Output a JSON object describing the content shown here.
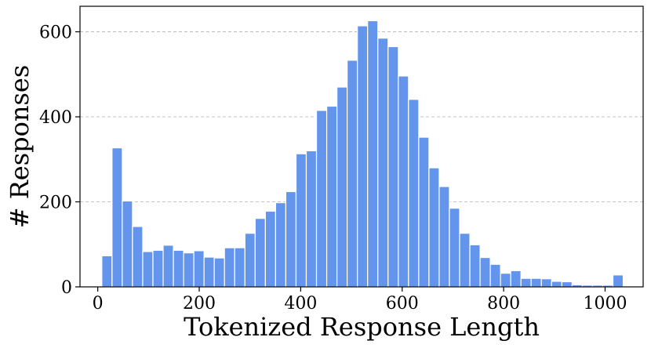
{
  "chart_data": {
    "type": "bar",
    "histogram": true,
    "xlabel": "Tokenized Response Length",
    "ylabel": "# Responses",
    "xlim": [
      -35,
      1075
    ],
    "ylim": [
      0,
      660
    ],
    "xticks": [
      0,
      200,
      400,
      600,
      800,
      1000
    ],
    "yticks": [
      0,
      200,
      400,
      600
    ],
    "grid": "y-dashed",
    "bar_color": "#6495ED",
    "bin_edges": [
      8,
      28.15,
      48.3,
      68.45,
      88.6,
      108.75,
      128.9,
      149.05,
      169.2,
      189.35,
      209.5,
      229.65,
      249.8,
      269.95,
      290.1,
      310.25,
      330.4,
      350.55,
      370.7,
      390.85,
      411,
      431.15,
      451.3,
      471.45,
      491.6,
      511.75,
      531.9,
      552.05,
      572.2,
      592.35,
      612.5,
      632.65,
      652.8,
      672.95,
      693.1,
      713.25,
      733.4,
      753.55,
      773.7,
      793.85,
      814,
      834.15,
      854.3,
      874.45,
      894.6,
      914.75,
      934.9,
      955.05,
      975.2,
      995.35,
      1015.5,
      1035.65
    ],
    "values": [
      73,
      327,
      202,
      142,
      83,
      86,
      98,
      86,
      80,
      85,
      70,
      68,
      92,
      92,
      126,
      161,
      178,
      198,
      224,
      313,
      320,
      415,
      425,
      470,
      533,
      614,
      626,
      585,
      565,
      496,
      441,
      352,
      280,
      236,
      185,
      126,
      99,
      69,
      53,
      32,
      38,
      20,
      20,
      19,
      13,
      12,
      5,
      4,
      4,
      4,
      28
    ]
  }
}
